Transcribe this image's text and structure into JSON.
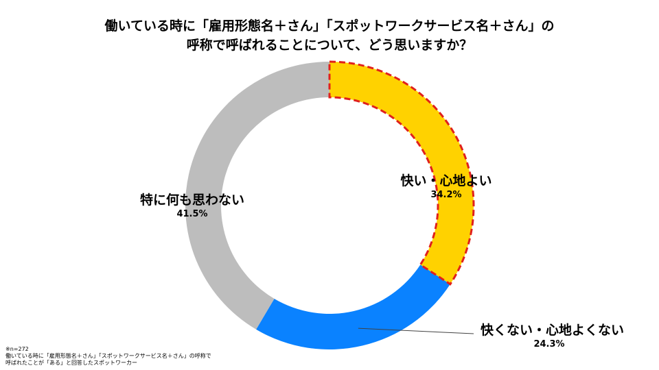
{
  "chart_data": {
    "type": "pie",
    "title": "働いている時に「雇用形態名＋さん」「スポットワークサービス名＋さん」の",
    "subtitle": "呼称で呼ばれることについて、どう思いますか？",
    "categories": [
      "快い・心地よい",
      "快くない・心地よくない",
      "特に何も思わない"
    ],
    "values": [
      34.2,
      24.3,
      41.5
    ],
    "value_labels": [
      "34.2%",
      "24.3%",
      "41.5%"
    ],
    "colors": [
      "#FFD200",
      "#0A82FF",
      "#BDBDBD"
    ],
    "highlight": {
      "segment": "快い・心地よい",
      "style": "dashed-outline",
      "color": "#E0201C"
    },
    "donut": true,
    "legend": "none"
  },
  "footnote": {
    "n": "※n=272",
    "line1": "働いている時に「雇用形態名＋さん」「スポットワークサービス名＋さん」の呼称で",
    "line2": "呼ばれたことが「ある」と回答したスポットワーカー"
  }
}
